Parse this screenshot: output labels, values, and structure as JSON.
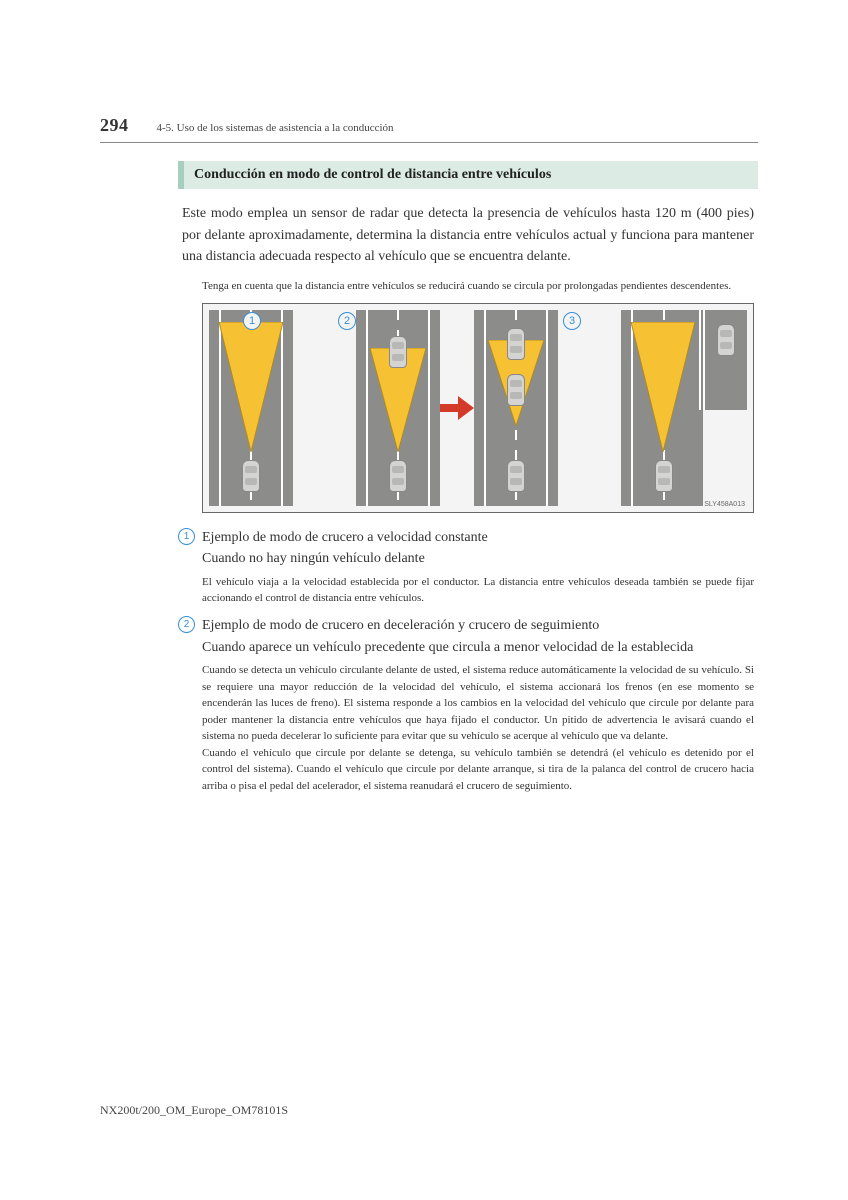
{
  "header": {
    "page_number": "294",
    "breadcrumb": "4-5. Uso de los sistemas de asistencia a la conducción"
  },
  "heading": "Conducción en modo de control de distancia entre vehículos",
  "intro": "Este modo emplea un sensor de radar que detecta la presencia de vehículos hasta 120 m (400 pies) por delante aproximadamente, determina la distancia entre vehículos actual y funciona para mantener una distancia adecuada respecto al vehículo que se encuentra delante.",
  "note": "Tenga en cuenta que la distancia entre vehículos se reducirá cuando se circula por prolongadas pendientes descendentes.",
  "diagram": {
    "labels": {
      "n1": "1",
      "n2": "2",
      "n3": "3"
    },
    "code": "SLY458A013",
    "cone_color": "#f6c234",
    "cone_stroke": "#b28a1e",
    "road_bg": "#8c8d8b",
    "arrow_color": "#d43a2a"
  },
  "items": [
    {
      "num": "1",
      "title": "Ejemplo de modo de crucero a velocidad constante",
      "subtitle": "Cuando no hay ningún vehículo delante",
      "desc": "El vehículo viaja a la velocidad establecida por el conductor. La distancia entre vehículos deseada también se puede fijar accionando el control de distancia entre vehículos."
    },
    {
      "num": "2",
      "title": "Ejemplo de modo de crucero en deceleración y crucero de seguimiento",
      "subtitle": "Cuando aparece un vehículo precedente que circula a menor velocidad de la establecida",
      "desc": "Cuando se detecta un vehículo circulante delante de usted, el sistema reduce automáticamente la velocidad de su vehículo. Si se requiere una mayor reducción de la velocidad del vehículo, el sistema accionará los frenos (en ese momento se encenderán las luces de freno). El sistema responde a los cambios en la velocidad del vehículo que circule por delante para poder mantener la distancia entre vehículos que haya fijado el conductor. Un pitido de advertencia le avisará cuando el sistema no pueda decelerar lo suficiente para evitar que su vehículo se acerque al vehículo que va delante.\nCuando el vehículo que circule por delante se detenga, su vehículo también se detendrá (el vehículo es detenido por el control del sistema). Cuando el vehículo que circule por delante arranque, si tira de la palanca del control de crucero hacia arriba o pisa el pedal del acelerador, el sistema reanudará el crucero de seguimiento."
    }
  ],
  "footer": "NX200t/200_OM_Europe_OM78101S"
}
